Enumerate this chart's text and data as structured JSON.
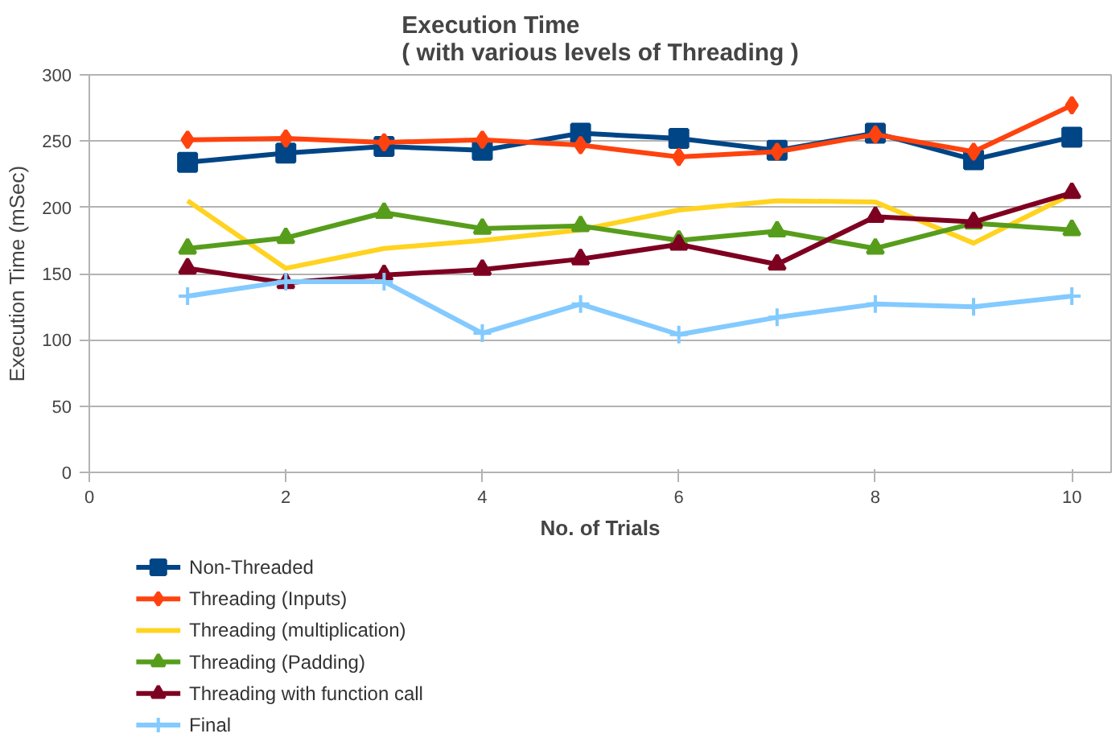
{
  "chart_data": {
    "type": "line",
    "title": "Execution Time\n( with various levels of Threading )",
    "xlabel": "No. of Trials",
    "ylabel": "Execution Time (mSec)",
    "x": [
      1,
      2,
      3,
      4,
      5,
      6,
      7,
      8,
      9,
      10
    ],
    "series": [
      {
        "name": "Non-Threaded",
        "color": "#004586",
        "marker": "square",
        "values": [
          234,
          241,
          246,
          243,
          256,
          252,
          243,
          256,
          236,
          253
        ]
      },
      {
        "name": "Threading (Inputs)",
        "color": "#ff420e",
        "marker": "diamond",
        "values": [
          251,
          252,
          249,
          251,
          247,
          238,
          242,
          255,
          242,
          277
        ]
      },
      {
        "name": "Threading (multiplication)",
        "color": "#ffd320",
        "marker": "none",
        "values": [
          205,
          154,
          169,
          175,
          183,
          198,
          205,
          204,
          173,
          210
        ]
      },
      {
        "name": "Threading (Padding)",
        "color": "#579d1c",
        "marker": "triangle",
        "values": [
          169,
          177,
          196,
          184,
          186,
          175,
          182,
          169,
          188,
          183
        ]
      },
      {
        "name": "Threading with function call",
        "color": "#7e0021",
        "marker": "triangle",
        "values": [
          154,
          143,
          149,
          153,
          161,
          172,
          157,
          193,
          189,
          211
        ]
      },
      {
        "name": "Final",
        "color": "#83caff",
        "marker": "cross",
        "values": [
          133,
          144,
          144,
          105,
          127,
          104,
          117,
          127,
          125,
          133
        ]
      }
    ],
    "xlim": [
      0,
      10.4
    ],
    "ylim": [
      0,
      300
    ],
    "xticks": [
      0,
      2,
      4,
      6,
      8,
      10
    ],
    "yticks": [
      0,
      50,
      100,
      150,
      200,
      250,
      300
    ],
    "grid": "y",
    "legend": "bottom left",
    "line_style": "solid"
  }
}
